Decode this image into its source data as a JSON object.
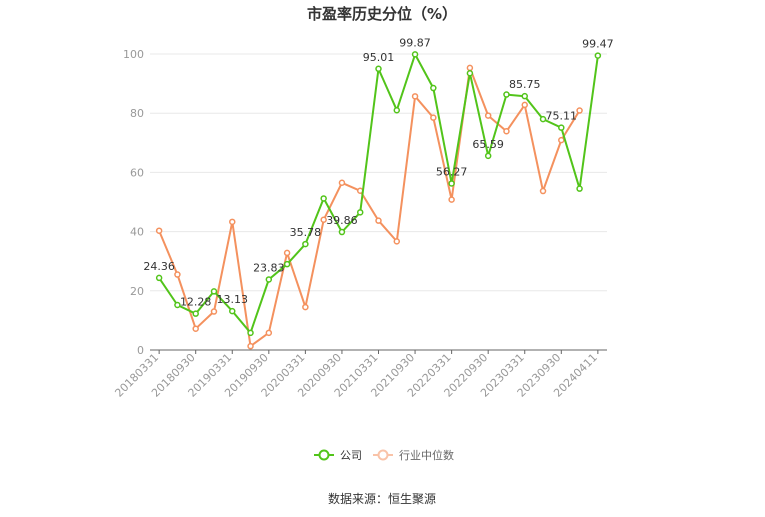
{
  "chart_data": {
    "type": "line",
    "title": "市盈率历史分位（%）",
    "xlabel": "",
    "ylabel": "",
    "ylim": [
      0,
      100
    ],
    "yticks": [
      0,
      20,
      40,
      60,
      80,
      100
    ],
    "xtick_labels": [
      "20180331",
      "20180930",
      "20190331",
      "20190930",
      "20200331",
      "20200930",
      "20210331",
      "20210930",
      "20220331",
      "20220930",
      "20230331",
      "20230930",
      "20240411"
    ],
    "x": [
      "20180331",
      "20180630",
      "20180930",
      "20181231",
      "20190331",
      "20190630",
      "20190930",
      "20191231",
      "20200331",
      "20200630",
      "20200930",
      "20201231",
      "20210331",
      "20210630",
      "20210930",
      "20211231",
      "20220331",
      "20220630",
      "20220930",
      "20221231",
      "20230331",
      "20230630",
      "20230930",
      "20231231",
      "20240411"
    ],
    "series": [
      {
        "name": "公司",
        "color": "#52c41a",
        "values": [
          24.36,
          15.2,
          12.28,
          19.8,
          13.13,
          5.8,
          23.83,
          29.0,
          35.78,
          51.2,
          39.86,
          46.5,
          95.01,
          81.0,
          99.87,
          88.5,
          56.27,
          93.5,
          65.59,
          86.3,
          85.75,
          78.0,
          75.11,
          54.5,
          99.47
        ]
      },
      {
        "name": "行业中位数",
        "color": "#f4915e",
        "values": [
          40.3,
          25.5,
          7.2,
          13.0,
          43.3,
          1.3,
          5.8,
          32.8,
          14.5,
          44.0,
          56.5,
          53.8,
          43.7,
          36.7,
          85.7,
          78.5,
          50.8,
          95.3,
          79.2,
          73.9,
          82.8,
          53.7,
          70.9,
          80.9,
          null
        ]
      }
    ],
    "data_labels": [
      {
        "index": 0,
        "text": "24.36"
      },
      {
        "index": 2,
        "text": "12.28"
      },
      {
        "index": 4,
        "text": "13.13"
      },
      {
        "index": 6,
        "text": "23.83"
      },
      {
        "index": 8,
        "text": "35.78"
      },
      {
        "index": 10,
        "text": "39.86"
      },
      {
        "index": 12,
        "text": "95.01"
      },
      {
        "index": 14,
        "text": "99.87"
      },
      {
        "index": 16,
        "text": "56.27"
      },
      {
        "index": 18,
        "text": "65.59"
      },
      {
        "index": 20,
        "text": "85.75"
      },
      {
        "index": 22,
        "text": "75.11"
      },
      {
        "index": 24,
        "text": "99.47"
      }
    ],
    "legend_position": "bottom",
    "grid": true
  },
  "legend": {
    "company": "公司",
    "industry": "行业中位数"
  },
  "source": "数据来源：恒生聚源"
}
